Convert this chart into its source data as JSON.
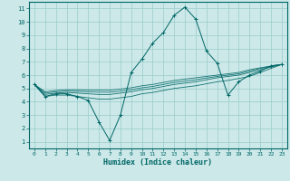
{
  "xlabel": "Humidex (Indice chaleur)",
  "background_color": "#cce8e8",
  "grid_color": "#99cccc",
  "line_color": "#006666",
  "xlim": [
    -0.5,
    23.5
  ],
  "ylim": [
    0.5,
    11.5
  ],
  "x_ticks": [
    0,
    1,
    2,
    3,
    4,
    5,
    6,
    7,
    8,
    9,
    10,
    11,
    12,
    13,
    14,
    15,
    16,
    17,
    18,
    19,
    20,
    21,
    22,
    23
  ],
  "y_ticks": [
    1,
    2,
    3,
    4,
    5,
    6,
    7,
    8,
    9,
    10,
    11
  ],
  "main_x": [
    0,
    1,
    2,
    3,
    4,
    5,
    6,
    7,
    8,
    9,
    10,
    11,
    12,
    13,
    14,
    15,
    16,
    17,
    18,
    19,
    20,
    21,
    22,
    23
  ],
  "main_y": [
    5.3,
    4.4,
    4.6,
    4.6,
    4.4,
    4.1,
    2.5,
    1.1,
    3.0,
    6.2,
    7.2,
    8.4,
    9.2,
    10.5,
    11.1,
    10.2,
    7.8,
    6.9,
    4.5,
    5.5,
    6.0,
    6.3,
    6.7,
    6.8
  ],
  "band_lines": [
    [
      5.3,
      4.4,
      4.5,
      4.5,
      4.4,
      4.3,
      4.2,
      4.2,
      4.3,
      4.4,
      4.6,
      4.7,
      4.85,
      5.0,
      5.1,
      5.2,
      5.35,
      5.5,
      5.6,
      5.75,
      5.9,
      6.2,
      6.5,
      6.8
    ],
    [
      5.3,
      4.55,
      4.65,
      4.7,
      4.65,
      4.6,
      4.55,
      4.55,
      4.65,
      4.75,
      4.9,
      5.0,
      5.15,
      5.3,
      5.4,
      5.5,
      5.65,
      5.8,
      5.9,
      6.0,
      6.2,
      6.4,
      6.6,
      6.8
    ],
    [
      5.3,
      4.65,
      4.75,
      4.8,
      4.78,
      4.75,
      4.72,
      4.72,
      4.8,
      4.9,
      5.05,
      5.15,
      5.3,
      5.45,
      5.55,
      5.65,
      5.78,
      5.9,
      6.0,
      6.1,
      6.3,
      6.5,
      6.65,
      6.8
    ],
    [
      5.3,
      4.75,
      4.85,
      4.9,
      4.9,
      4.88,
      4.87,
      4.87,
      4.95,
      5.05,
      5.2,
      5.3,
      5.45,
      5.6,
      5.7,
      5.8,
      5.9,
      6.0,
      6.1,
      6.2,
      6.4,
      6.55,
      6.68,
      6.8
    ]
  ]
}
